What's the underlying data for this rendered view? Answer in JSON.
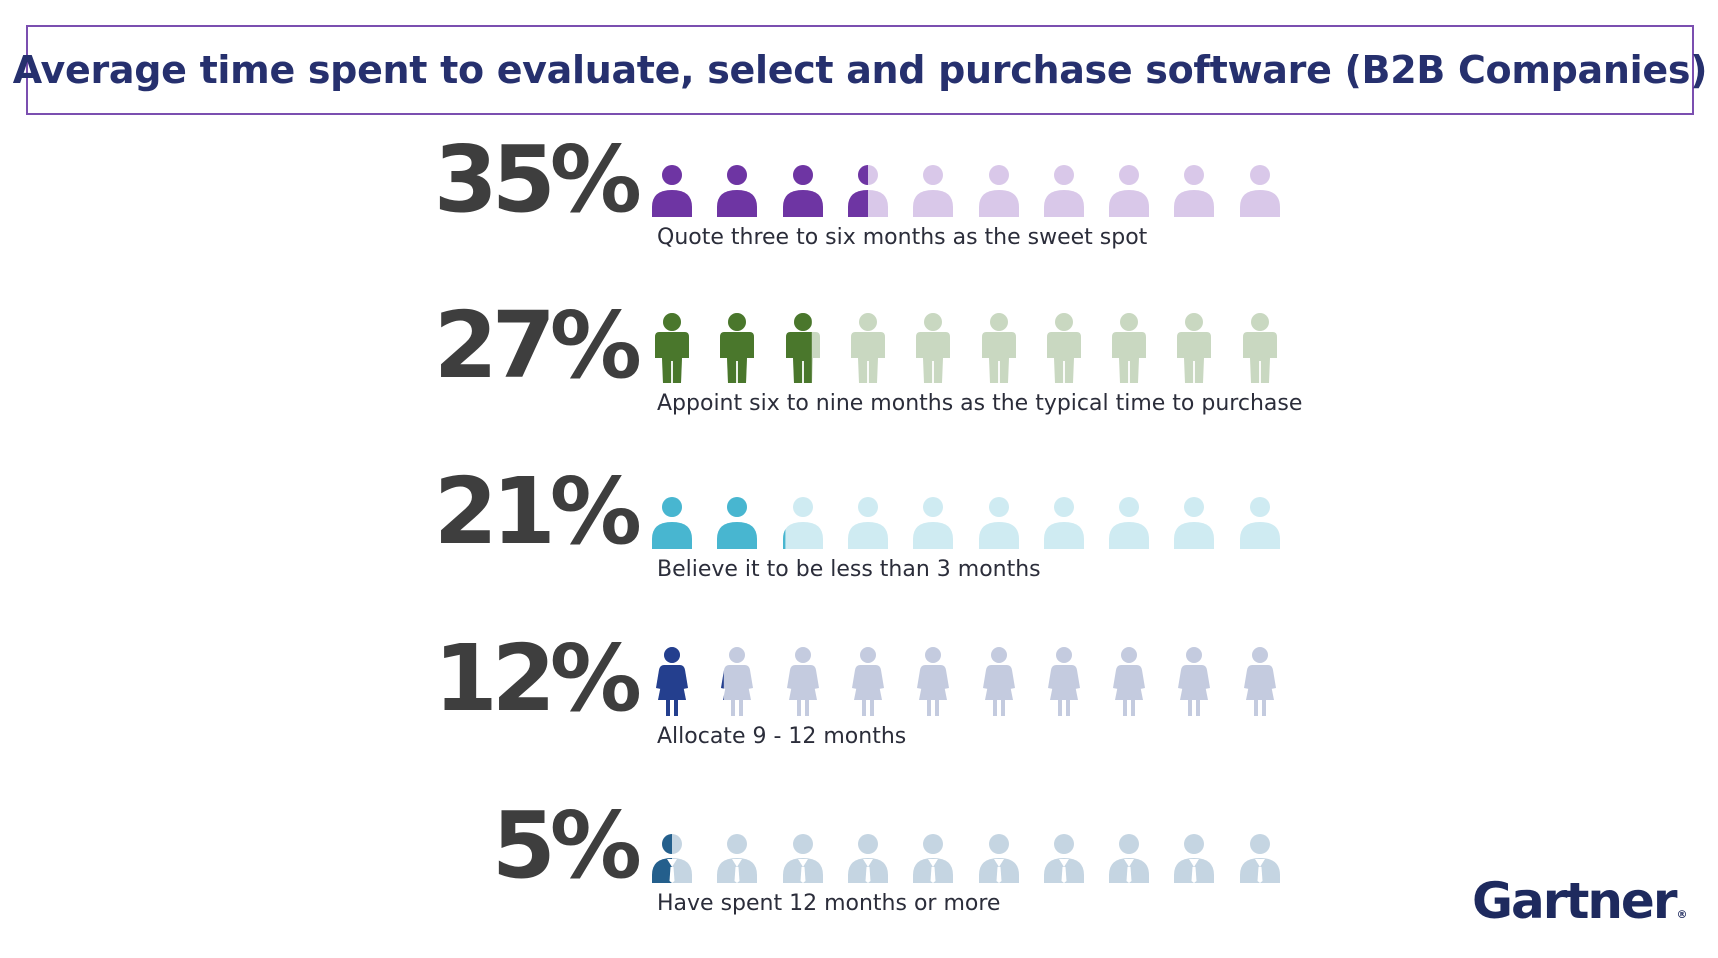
{
  "title": "Average time spent to evaluate, select and purchase software (B2B Companies)",
  "logo": {
    "text": "Gartner",
    "reg": "®"
  },
  "icon_count": 10,
  "chart_data": {
    "type": "pictograph",
    "title": "Average time spent to evaluate, select and purchase software (B2B Companies)",
    "unit": "%",
    "icons_per_row": 10,
    "rows": [
      {
        "key": "r35",
        "value": 35,
        "label": "35%",
        "description": "Quote three to six months as the sweet spot",
        "icon": "person-bust-icon",
        "color": "#6e35a3",
        "light_color": "#d9c8e9"
      },
      {
        "key": "r27",
        "value": 27,
        "label": "27%",
        "description": "Appoint six to nine months as the typical time to purchase",
        "icon": "person-standing-icon",
        "color": "#4a772c",
        "light_color": "#c9d8c1"
      },
      {
        "key": "r21",
        "value": 21,
        "label": "21%",
        "description": "Believe it to be less than 3 months",
        "icon": "person-bust-icon",
        "color": "#48b6d0",
        "light_color": "#cfebf2"
      },
      {
        "key": "r12",
        "value": 12,
        "label": "12%",
        "description": "Allocate 9 - 12 months",
        "icon": "person-dress-icon",
        "color": "#243f8e",
        "light_color": "#c4cbdf"
      },
      {
        "key": "r5",
        "value": 5,
        "label": "5%",
        "description": "Have spent 12 months or more",
        "icon": "person-suit-icon",
        "color": "#245f8c",
        "light_color": "#c5d5e2"
      }
    ]
  }
}
